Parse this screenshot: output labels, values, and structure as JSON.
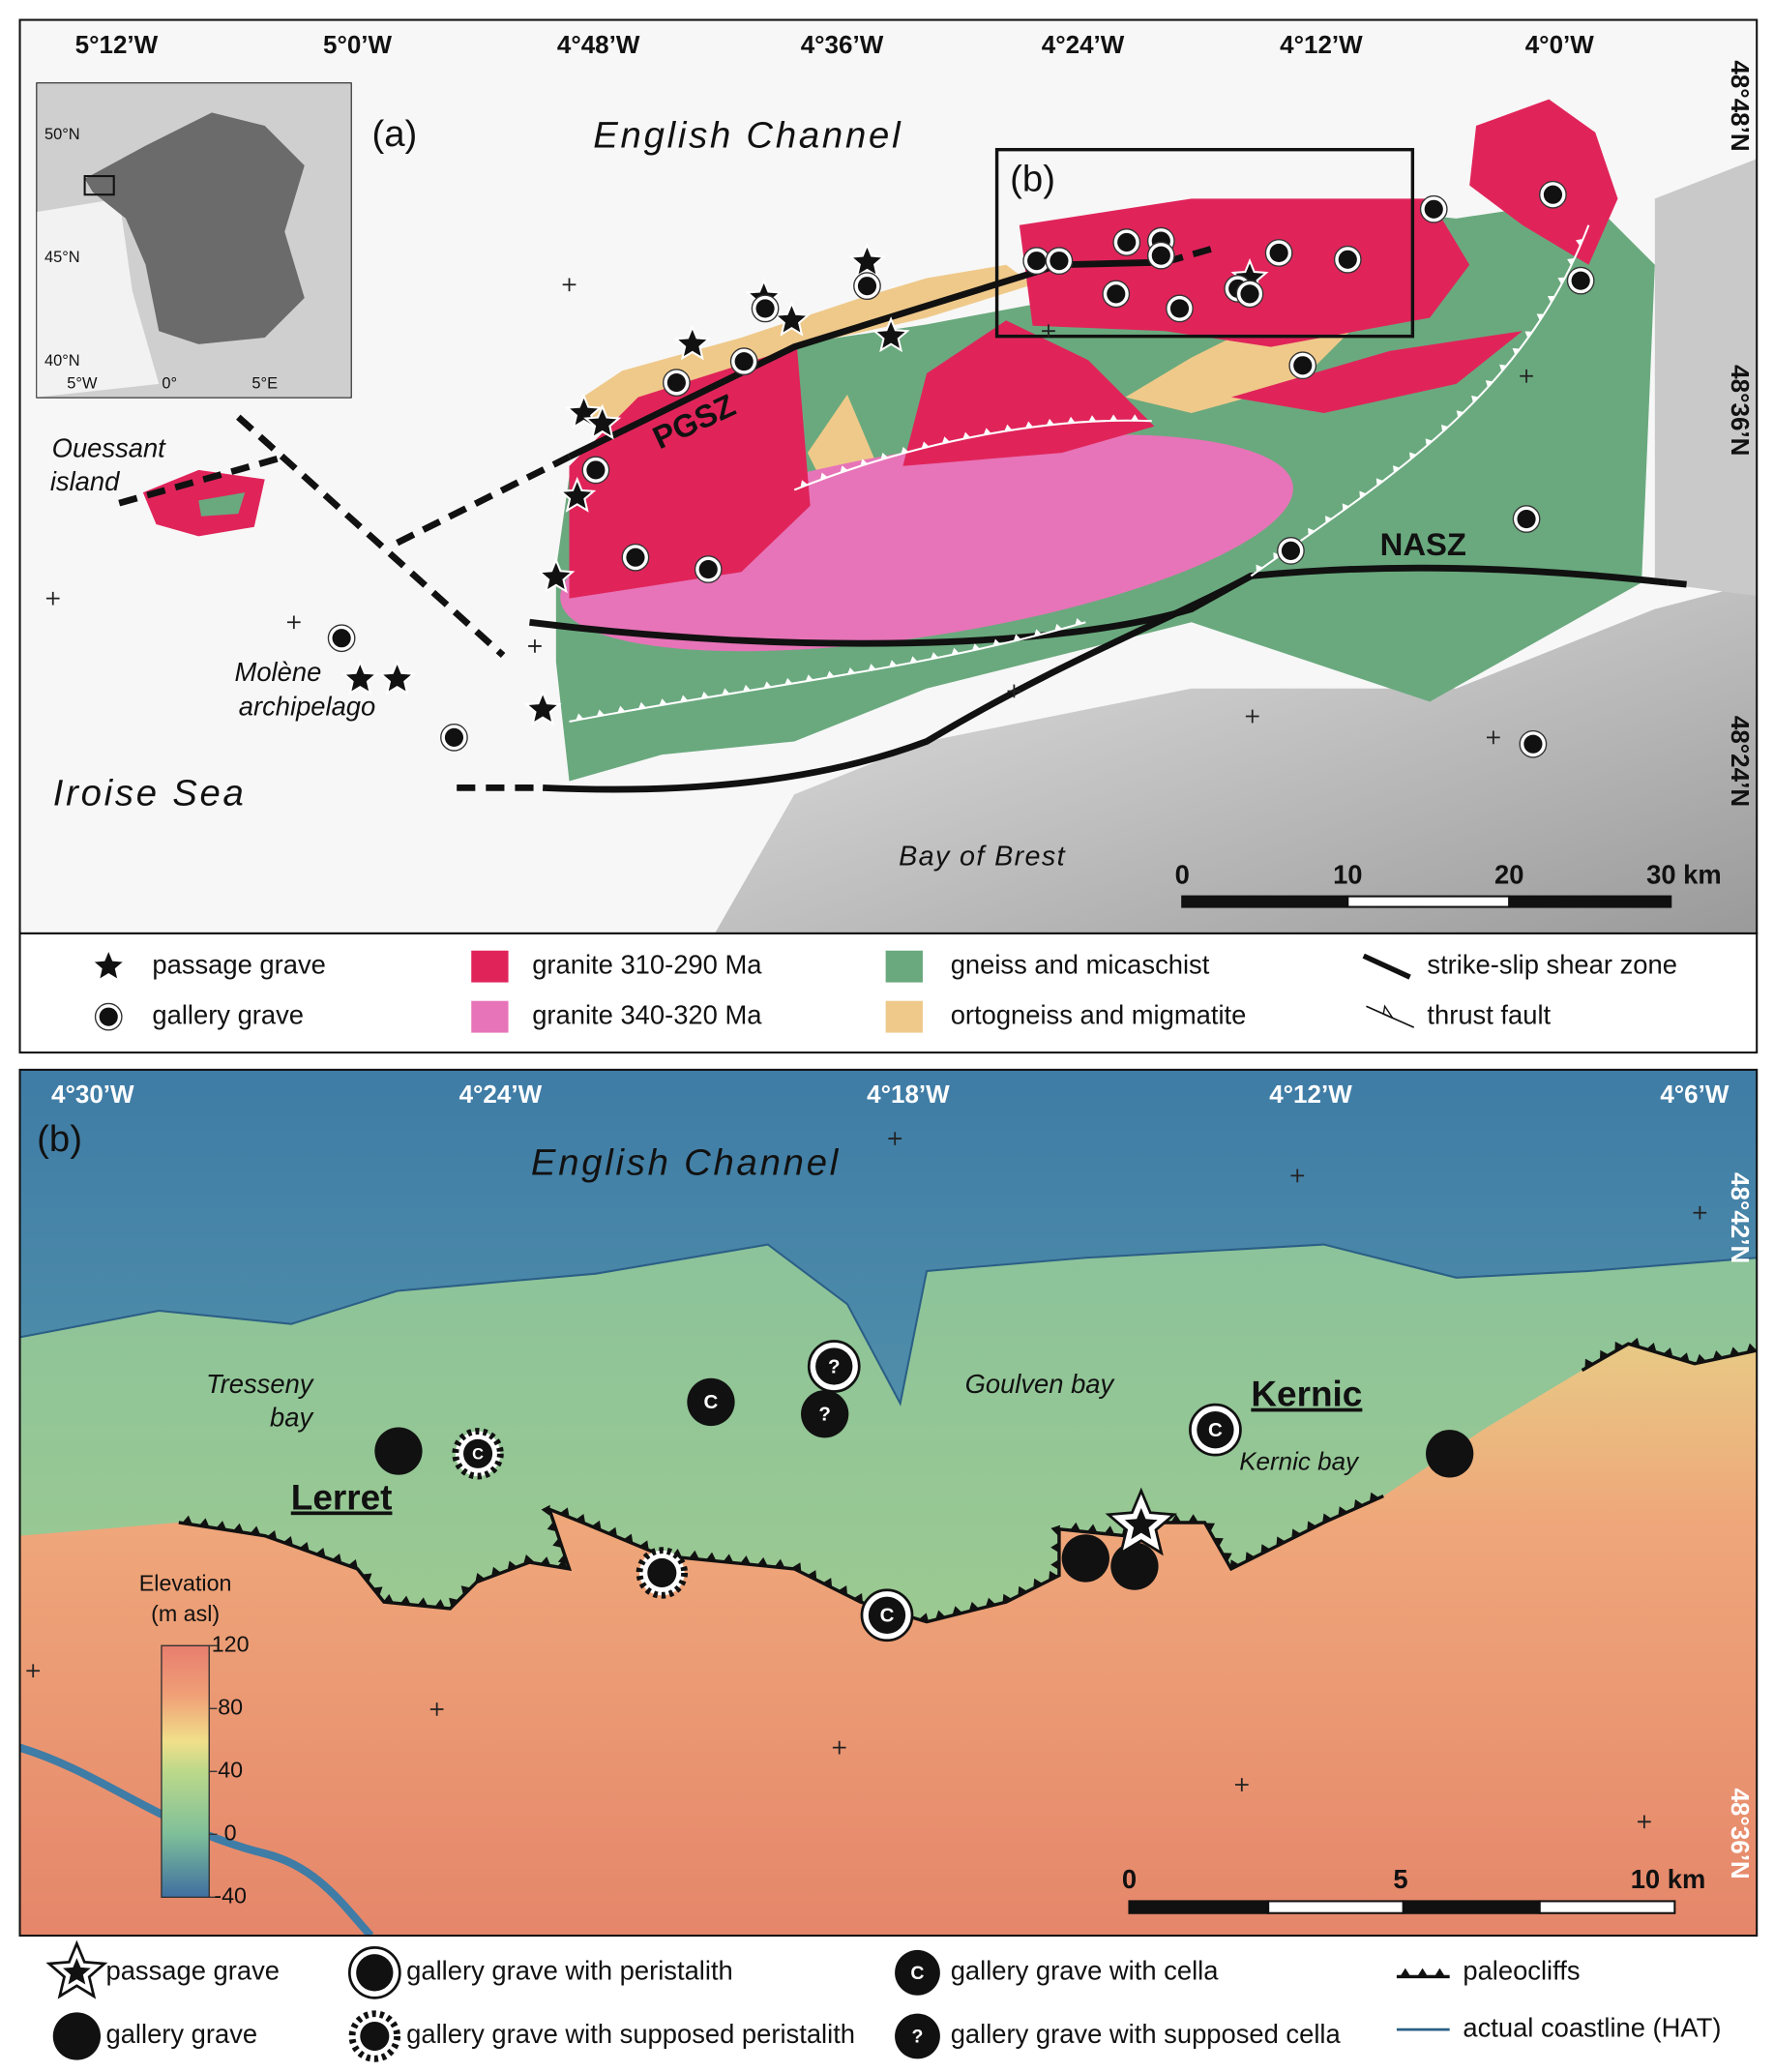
{
  "panel_a": {
    "label": "(a)",
    "box_label": "(b)",
    "lon_labels": [
      "5°12’W",
      "5°0’W",
      "4°48’W",
      "4°36’W",
      "4°24’W",
      "4°12’W",
      "4°0’W"
    ],
    "lat_labels": [
      "48°48’N",
      "48°36’N",
      "48°24’N"
    ],
    "inset": {
      "lat_labels": [
        "50°N",
        "45°N",
        "40°N"
      ],
      "lon_labels": [
        "5°W",
        "0°",
        "5°E"
      ]
    },
    "places": {
      "sea_north": "English Channel",
      "island": [
        "Ouessant",
        "island"
      ],
      "archipelago": [
        "Molène",
        "archipelago"
      ],
      "sea_west": "Iroise Sea",
      "bay": "Bay of Brest"
    },
    "shear_zones": [
      "PGSZ",
      "NASZ"
    ],
    "scale_labels": [
      "0",
      "10",
      "20",
      "30 km"
    ]
  },
  "legend_a": [
    "passage grave",
    "gallery grave",
    "granite 310-290 Ma",
    "granite 340-320 Ma",
    "gneiss and micaschist",
    "ortogneiss and migmatite",
    "strike-slip shear zone",
    "thrust fault"
  ],
  "panel_b": {
    "label": "(b)",
    "lon_labels": [
      "4°30’W",
      "4°24’W",
      "4°18’W",
      "4°12’W",
      "4°6’W"
    ],
    "lat_labels": [
      "48°42’N",
      "48°36’N"
    ],
    "places": {
      "sea": "English Channel",
      "bay_west": [
        "Tresseny",
        "bay"
      ],
      "town_west": "Lerret",
      "bay_middle": "Goulven bay",
      "town_east": "Kernic",
      "bay_east": "Kernic bay"
    },
    "elevation": {
      "title": [
        "Elevation",
        "(m asl)"
      ],
      "lim": [
        -40,
        120
      ],
      "ticks": [
        120,
        80,
        40,
        0,
        -40
      ]
    },
    "scale_labels": [
      "0",
      "5",
      "10 km"
    ],
    "symbol_marks": {
      "cella": "C",
      "supposed_cella": "?"
    }
  },
  "legend_b": [
    "passage grave",
    "gallery grave",
    "gallery grave with peristalith",
    "gallery grave with supposed peristalith",
    "gallery grave with cella",
    "gallery grave with supposed cella",
    "paleocliffs",
    "actual coastline (HAT)"
  ]
}
